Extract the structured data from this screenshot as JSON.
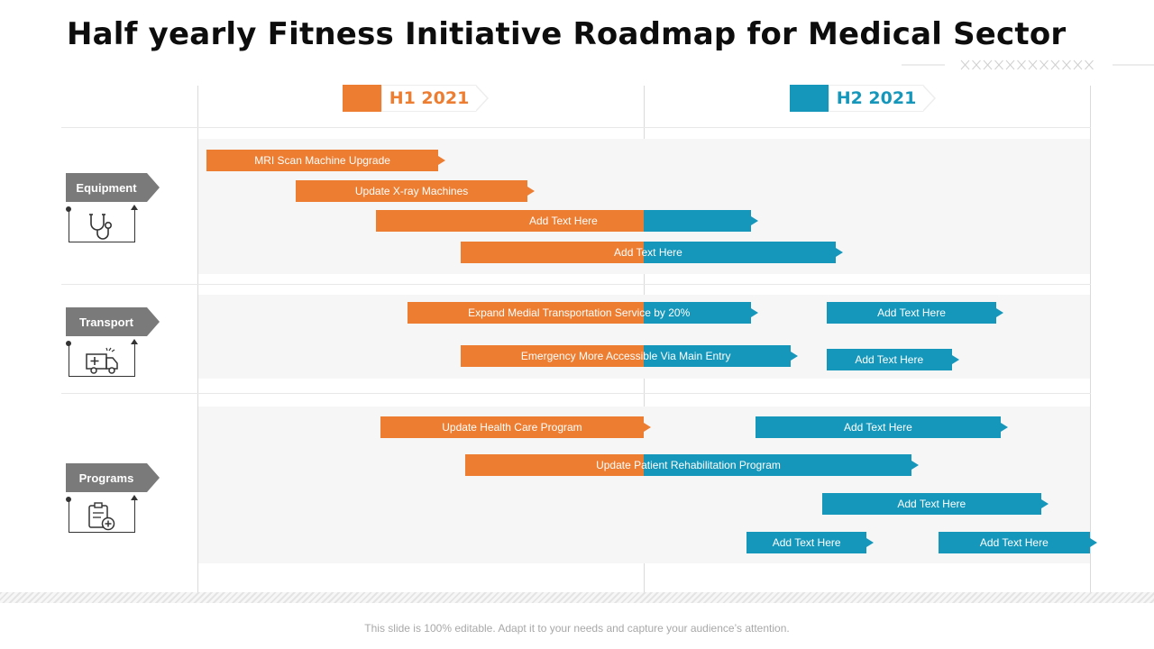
{
  "title": "Half yearly Fitness Initiative Roadmap for Medical Sector",
  "colors": {
    "h1": "#ed7d31",
    "h2": "#1597bb",
    "category": "#7a7a7a"
  },
  "periods": [
    {
      "label": "H1 2021",
      "color": "#ed7d31"
    },
    {
      "label": "H2 2021",
      "color": "#1597bb"
    }
  ],
  "categories": [
    {
      "label": "Equipment",
      "icon": "stethoscope-icon"
    },
    {
      "label": "Transport",
      "icon": "ambulance-icon"
    },
    {
      "label": "Programs",
      "icon": "clipboard-add-icon"
    }
  ],
  "tasks": [
    {
      "label": "MRI Scan Machine Upgrade",
      "start": 0.02,
      "split": 0.54,
      "end": 0.54,
      "category": "Equipment"
    },
    {
      "label": "Update X-ray Machines",
      "start": 0.22,
      "split": 0.74,
      "end": 0.74,
      "category": "Equipment"
    },
    {
      "label": "Add Text Here",
      "start": 0.4,
      "split": 1.0,
      "end": 1.24,
      "category": "Equipment"
    },
    {
      "label": "Add Text Here",
      "start": 0.59,
      "split": 1.0,
      "end": 1.43,
      "category": "Equipment"
    },
    {
      "label": "Expand Medial Transportation Service by 20%",
      "start": 0.47,
      "split": 1.0,
      "end": 1.24,
      "category": "Transport"
    },
    {
      "label": "Add Text Here",
      "start": 1.41,
      "split": 1.41,
      "end": 1.79,
      "category": "Transport"
    },
    {
      "label": "Emergency More Accessible Via Main Entry",
      "start": 0.59,
      "split": 1.0,
      "end": 1.33,
      "category": "Transport"
    },
    {
      "label": "Add Text Here",
      "start": 1.41,
      "split": 1.41,
      "end": 1.69,
      "category": "Transport"
    },
    {
      "label": "Update Health Care Program",
      "start": 0.41,
      "split": 1.0,
      "end": 1.0,
      "category": "Programs"
    },
    {
      "label": "Add Text Here",
      "start": 1.25,
      "split": 1.25,
      "end": 1.8,
      "category": "Programs"
    },
    {
      "label": "Update Patient Rehabilitation Program",
      "start": 0.6,
      "split": 1.0,
      "end": 1.6,
      "category": "Programs"
    },
    {
      "label": "Add Text Here",
      "start": 1.4,
      "split": 1.4,
      "end": 1.89,
      "category": "Programs"
    },
    {
      "label": "Add Text Here",
      "start": 1.23,
      "split": 1.23,
      "end": 1.5,
      "category": "Programs"
    },
    {
      "label": "Add Text Here",
      "start": 1.66,
      "split": 1.66,
      "end": 2.0,
      "category": "Programs"
    }
  ],
  "footer": "This slide is 100% editable. Adapt it to your needs and capture your audience’s attention."
}
